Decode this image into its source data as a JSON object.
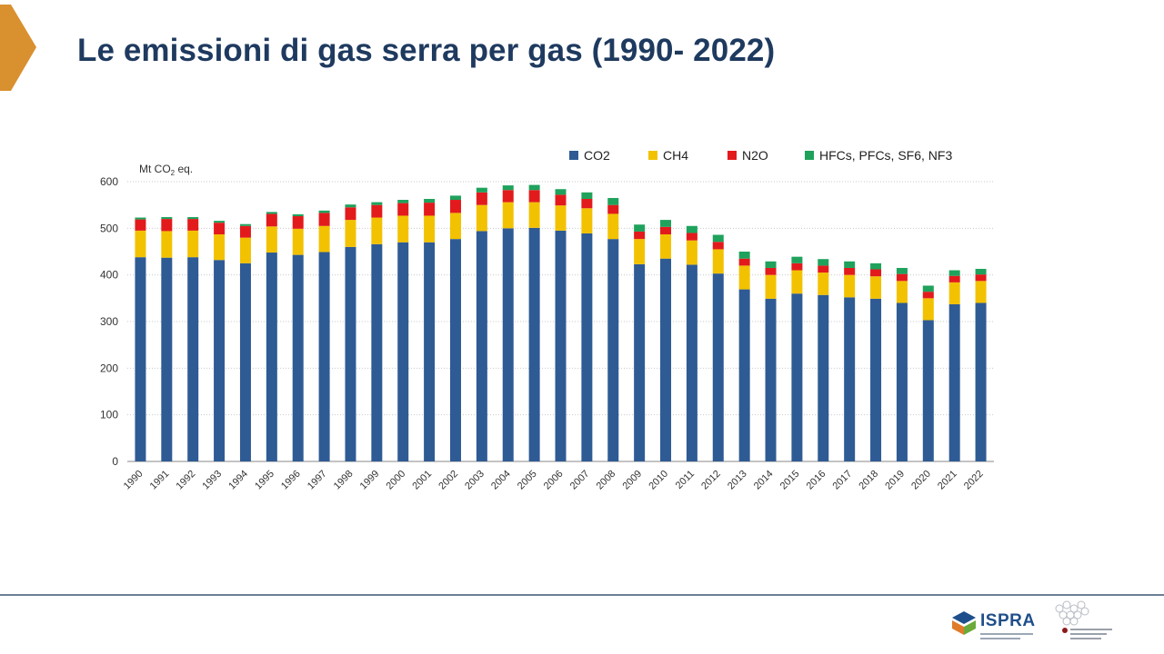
{
  "slide": {
    "title": "Le emissioni di gas serra per gas (1990- 2022)"
  },
  "footer": {
    "ispra_logo_text": "ISPRA"
  },
  "chart_data": {
    "type": "bar",
    "stacked": true,
    "unit_label": "Mt CO2 eq.",
    "ylim": [
      0,
      600
    ],
    "yticks": [
      0,
      100,
      200,
      300,
      400,
      500,
      600
    ],
    "grid": true,
    "legend_position": "top-right",
    "categories": [
      "1990",
      "1991",
      "1992",
      "1993",
      "1994",
      "1995",
      "1996",
      "1997",
      "1998",
      "1999",
      "2000",
      "2001",
      "2002",
      "2003",
      "2004",
      "2005",
      "2006",
      "2007",
      "2008",
      "2009",
      "2010",
      "2011",
      "2012",
      "2013",
      "2014",
      "2015",
      "2016",
      "2017",
      "2018",
      "2019",
      "2020",
      "2021",
      "2022"
    ],
    "series": [
      {
        "name": "CO2",
        "color": "#2f5b94",
        "values": [
          438,
          437,
          438,
          432,
          425,
          448,
          443,
          449,
          460,
          466,
          470,
          470,
          477,
          494,
          500,
          501,
          495,
          489,
          477,
          423,
          435,
          422,
          403,
          369,
          349,
          360,
          357,
          352,
          349,
          340,
          303,
          337,
          340
        ]
      },
      {
        "name": "CH4",
        "color": "#f2c200",
        "values": [
          57,
          57,
          57,
          55,
          55,
          56,
          56,
          56,
          58,
          57,
          57,
          57,
          56,
          56,
          56,
          55,
          54,
          54,
          54,
          54,
          52,
          52,
          52,
          51,
          51,
          50,
          48,
          48,
          48,
          47,
          47,
          47,
          47
        ]
      },
      {
        "name": "N2O",
        "color": "#e31a1c",
        "values": [
          24,
          26,
          25,
          25,
          25,
          27,
          27,
          28,
          27,
          27,
          27,
          28,
          28,
          27,
          26,
          26,
          23,
          20,
          19,
          16,
          16,
          16,
          16,
          15,
          15,
          15,
          15,
          15,
          15,
          15,
          14,
          14,
          14
        ]
      },
      {
        "name": "HFCs, PFCs, SF6, NF3",
        "color": "#1fa25c",
        "values": [
          4,
          4,
          4,
          4,
          4,
          4,
          4,
          5,
          6,
          6,
          7,
          8,
          9,
          10,
          10,
          11,
          12,
          14,
          15,
          15,
          15,
          15,
          15,
          15,
          14,
          14,
          14,
          14,
          13,
          13,
          13,
          12,
          12
        ]
      }
    ]
  }
}
